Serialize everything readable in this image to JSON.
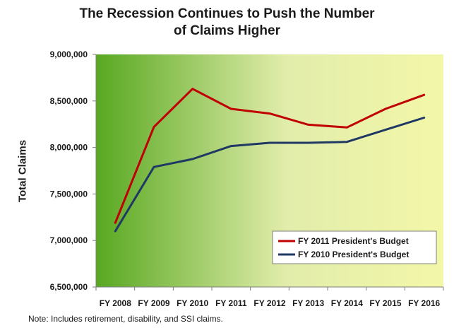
{
  "chart_data": {
    "type": "line",
    "title_lines": [
      "The Recession Continues to Push the Number",
      "of Claims Higher"
    ],
    "xlabel": "",
    "ylabel": "Total Claims",
    "categories": [
      "FY 2008",
      "FY 2009",
      "FY 2010",
      "FY 2011",
      "FY 2012",
      "FY 2013",
      "FY 2014",
      "FY 2015",
      "FY 2016"
    ],
    "ylim": [
      6500000,
      9000000
    ],
    "yticks": [
      6500000,
      7000000,
      7500000,
      8000000,
      8500000,
      9000000
    ],
    "ytick_labels": [
      "6,500,000",
      "7,000,000",
      "7,500,000",
      "8,000,000",
      "8,500,000",
      "9,000,000"
    ],
    "legend_position": "bottom-right",
    "series": [
      {
        "name": "FY 2011 President's Budget",
        "color": "#c00000",
        "values": [
          7190000,
          8220000,
          8630000,
          8415000,
          8365000,
          8245000,
          8215000,
          8415000,
          8565000
        ]
      },
      {
        "name": "FY 2010 President's Budget",
        "color": "#1f3864",
        "values": [
          7100000,
          7790000,
          7875000,
          8015000,
          8050000,
          8050000,
          8060000,
          8190000,
          8320000
        ]
      }
    ],
    "background_gradient": [
      "#58a821",
      "#e2edab",
      "#f3f7a8"
    ]
  },
  "note": "Note: Includes retirement, disability, and SSI claims."
}
